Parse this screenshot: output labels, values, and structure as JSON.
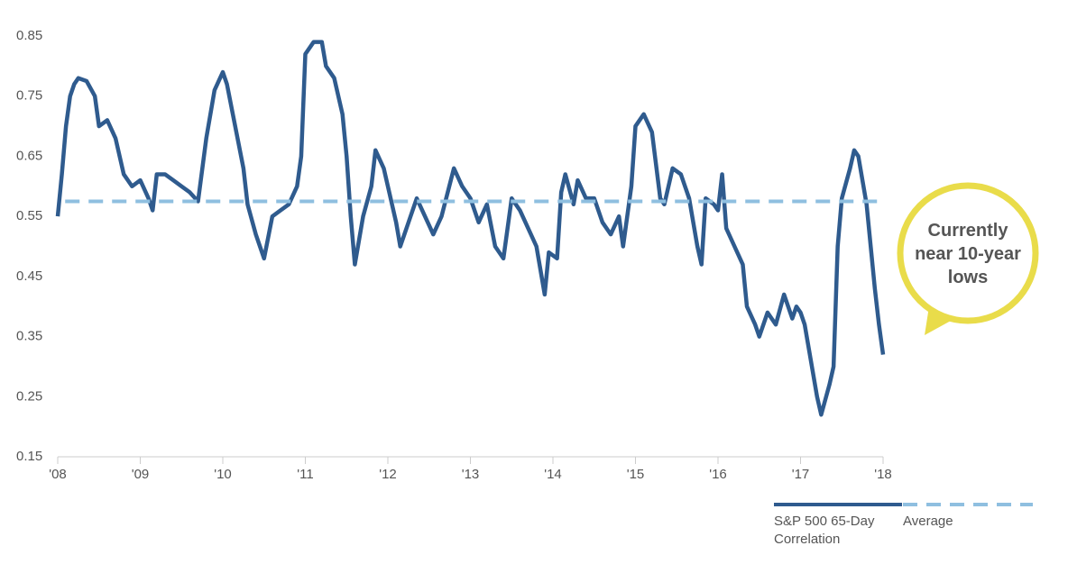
{
  "chart_data": {
    "type": "line",
    "annotation": "Currently near 10-year lows",
    "xlim": [
      2008,
      2018
    ],
    "xticks": [
      {
        "value": 2008,
        "label": "'08"
      },
      {
        "value": 2009,
        "label": "'09"
      },
      {
        "value": 2010,
        "label": "'10"
      },
      {
        "value": 2011,
        "label": "'11"
      },
      {
        "value": 2012,
        "label": "'12"
      },
      {
        "value": 2013,
        "label": "'13"
      },
      {
        "value": 2014,
        "label": "'14"
      },
      {
        "value": 2015,
        "label": "'15"
      },
      {
        "value": 2016,
        "label": "'16"
      },
      {
        "value": 2017,
        "label": "'17"
      },
      {
        "value": 2018,
        "label": "'18"
      }
    ],
    "ylim": [
      0.15,
      0.85
    ],
    "yticks": [
      0.15,
      0.25,
      0.35,
      0.45,
      0.55,
      0.65,
      0.75,
      0.85
    ],
    "grid": false,
    "series": [
      {
        "name": "S&P 500 65-Day Correlation",
        "color": "#2f5b8e",
        "style": "solid",
        "x": [
          2008.0,
          2008.05,
          2008.1,
          2008.15,
          2008.2,
          2008.25,
          2008.35,
          2008.45,
          2008.5,
          2008.6,
          2008.7,
          2008.8,
          2008.9,
          2009.0,
          2009.1,
          2009.15,
          2009.2,
          2009.3,
          2009.4,
          2009.5,
          2009.6,
          2009.7,
          2009.8,
          2009.9,
          2010.0,
          2010.05,
          2010.15,
          2010.25,
          2010.3,
          2010.4,
          2010.5,
          2010.6,
          2010.7,
          2010.8,
          2010.9,
          2010.95,
          2011.0,
          2011.1,
          2011.2,
          2011.25,
          2011.35,
          2011.45,
          2011.5,
          2011.55,
          2011.6,
          2011.7,
          2011.8,
          2011.85,
          2011.95,
          2012.0,
          2012.1,
          2012.15,
          2012.25,
          2012.35,
          2012.45,
          2012.55,
          2012.65,
          2012.8,
          2012.9,
          2013.0,
          2013.1,
          2013.2,
          2013.3,
          2013.4,
          2013.5,
          2013.6,
          2013.7,
          2013.8,
          2013.9,
          2013.95,
          2014.05,
          2014.1,
          2014.15,
          2014.25,
          2014.3,
          2014.4,
          2014.5,
          2014.6,
          2014.7,
          2014.8,
          2014.85,
          2014.95,
          2015.0,
          2015.1,
          2015.2,
          2015.3,
          2015.35,
          2015.45,
          2015.55,
          2015.65,
          2015.75,
          2015.8,
          2015.85,
          2015.95,
          2016.0,
          2016.05,
          2016.1,
          2016.2,
          2016.3,
          2016.35,
          2016.45,
          2016.5,
          2016.6,
          2016.7,
          2016.8,
          2016.9,
          2016.95,
          2017.0,
          2017.05,
          2017.1,
          2017.2,
          2017.25,
          2017.35,
          2017.4,
          2017.45,
          2017.5,
          2017.6,
          2017.65,
          2017.7,
          2017.8,
          2017.85,
          2017.9,
          2017.95,
          2018.0
        ],
        "values": [
          0.55,
          0.62,
          0.7,
          0.75,
          0.77,
          0.78,
          0.775,
          0.75,
          0.7,
          0.71,
          0.68,
          0.62,
          0.6,
          0.61,
          0.58,
          0.56,
          0.62,
          0.62,
          0.61,
          0.6,
          0.59,
          0.575,
          0.68,
          0.76,
          0.79,
          0.77,
          0.7,
          0.63,
          0.57,
          0.52,
          0.48,
          0.55,
          0.56,
          0.57,
          0.6,
          0.65,
          0.82,
          0.84,
          0.84,
          0.8,
          0.78,
          0.72,
          0.65,
          0.55,
          0.47,
          0.55,
          0.6,
          0.66,
          0.63,
          0.6,
          0.54,
          0.5,
          0.54,
          0.58,
          0.55,
          0.52,
          0.55,
          0.63,
          0.6,
          0.58,
          0.54,
          0.57,
          0.5,
          0.48,
          0.58,
          0.56,
          0.53,
          0.5,
          0.42,
          0.49,
          0.48,
          0.59,
          0.62,
          0.57,
          0.61,
          0.58,
          0.58,
          0.54,
          0.52,
          0.55,
          0.5,
          0.6,
          0.7,
          0.72,
          0.69,
          0.58,
          0.57,
          0.63,
          0.62,
          0.58,
          0.5,
          0.47,
          0.58,
          0.57,
          0.56,
          0.62,
          0.53,
          0.5,
          0.47,
          0.4,
          0.37,
          0.35,
          0.39,
          0.37,
          0.42,
          0.38,
          0.4,
          0.39,
          0.37,
          0.33,
          0.25,
          0.22,
          0.27,
          0.3,
          0.5,
          0.58,
          0.63,
          0.66,
          0.65,
          0.57,
          0.5,
          0.43,
          0.37,
          0.32
        ]
      },
      {
        "name": "Average",
        "color": "#8fbfe0",
        "style": "dashed",
        "x": [
          2008.09,
          2018.0
        ],
        "values": [
          0.575,
          0.575
        ]
      }
    ]
  }
}
